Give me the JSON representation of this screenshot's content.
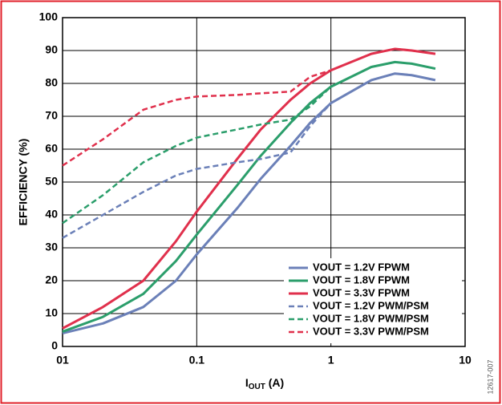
{
  "chart_data": {
    "type": "line",
    "xlabel": [
      "I",
      "OUT",
      " (A)"
    ],
    "ylabel": "EFFICIENCY (%)",
    "figure_id": "12617-007",
    "x": [
      0.01,
      0.02,
      0.04,
      0.07,
      0.1,
      0.2,
      0.3,
      0.5,
      0.7,
      1,
      2,
      3,
      4,
      6
    ],
    "xscale": "log",
    "xlim": [
      0.01,
      10
    ],
    "xticks": [
      {
        "value": 0.01,
        "label": "01"
      },
      0.1,
      1,
      10
    ],
    "ylim": [
      0,
      100
    ],
    "yticks": [
      0,
      10,
      20,
      30,
      40,
      50,
      60,
      70,
      80,
      90,
      100
    ],
    "grid": true,
    "legend": "lower right",
    "series": [
      {
        "name": "VOUT = 1.2V FPWM",
        "color": "#6b80b8",
        "line_style": "solid",
        "values": [
          4,
          7,
          12,
          20,
          28,
          42,
          51,
          61,
          68,
          74,
          81,
          83,
          82.5,
          81
        ]
      },
      {
        "name": "VOUT = 1.8V FPWM",
        "color": "#2b9e6b",
        "line_style": "solid",
        "values": [
          4.5,
          9,
          16,
          26,
          34,
          49,
          58,
          68,
          74,
          79,
          85,
          86.5,
          86,
          84.5
        ]
      },
      {
        "name": "VOUT = 3.3V FPWM",
        "color": "#e0304c",
        "line_style": "solid",
        "values": [
          5.5,
          12,
          20,
          32,
          41,
          57,
          66,
          75,
          80,
          84,
          89,
          90.5,
          90,
          89
        ]
      },
      {
        "name": "VOUT = 1.2V PWM/PSM",
        "color": "#6b80b8",
        "line_style": "dashed",
        "values": [
          33,
          40,
          47,
          52,
          54,
          56,
          57,
          59,
          67,
          74,
          81,
          83,
          82.5,
          81
        ]
      },
      {
        "name": "VOUT = 1.8V PWM/PSM",
        "color": "#2b9e6b",
        "line_style": "dashed",
        "values": [
          37.5,
          46,
          56,
          61,
          63.5,
          66,
          67.5,
          69,
          73,
          79,
          85,
          86.5,
          86,
          84.5
        ]
      },
      {
        "name": "VOUT = 3.3V PWM/PSM",
        "color": "#e0304c",
        "line_style": "dashed",
        "values": [
          55,
          63,
          72,
          75,
          76,
          76.5,
          77,
          77.5,
          82,
          84,
          89,
          90.5,
          90,
          89
        ]
      }
    ]
  }
}
